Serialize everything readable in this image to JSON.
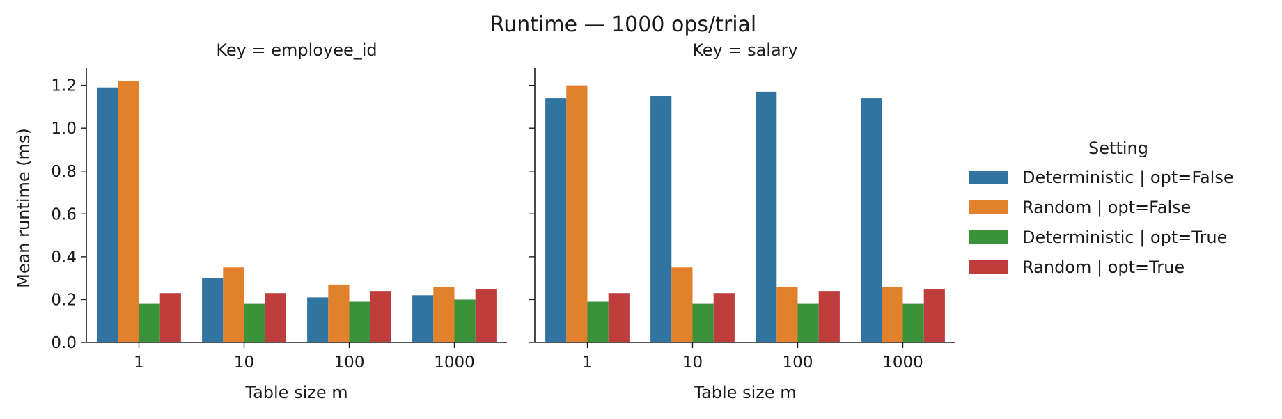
{
  "figure_title": "Runtime — 1000 ops/trial",
  "ylabel": "Mean runtime (ms)",
  "xlabel": "Table size m",
  "legend": {
    "title": "Setting",
    "entries": [
      {
        "label": "Deterministic | opt=False",
        "color": "#3274a1"
      },
      {
        "label": "Random | opt=False",
        "color": "#e1812c"
      },
      {
        "label": "Deterministic | opt=True",
        "color": "#3a923a"
      },
      {
        "label": "Random | opt=True",
        "color": "#c03d3e"
      }
    ]
  },
  "chart_data": [
    {
      "type": "bar",
      "title": "Key = employee_id",
      "xlabel": "Table size m",
      "ylabel": "Mean runtime (ms)",
      "categories": [
        "1",
        "10",
        "100",
        "1000"
      ],
      "ylim": [
        0,
        1.28
      ],
      "yticks": [
        "0.0",
        "0.2",
        "0.4",
        "0.6",
        "0.8",
        "1.0",
        "1.2"
      ],
      "series": [
        {
          "name": "Deterministic | opt=False",
          "values": [
            1.19,
            0.3,
            0.21,
            0.22
          ]
        },
        {
          "name": "Random | opt=False",
          "values": [
            1.22,
            0.35,
            0.27,
            0.26
          ]
        },
        {
          "name": "Deterministic | opt=True",
          "values": [
            0.18,
            0.18,
            0.19,
            0.2
          ]
        },
        {
          "name": "Random | opt=True",
          "values": [
            0.23,
            0.23,
            0.24,
            0.25
          ]
        }
      ]
    },
    {
      "type": "bar",
      "title": "Key = salary",
      "xlabel": "Table size m",
      "ylabel": "",
      "categories": [
        "1",
        "10",
        "100",
        "1000"
      ],
      "ylim": [
        0,
        1.28
      ],
      "series": [
        {
          "name": "Deterministic | opt=False",
          "values": [
            1.14,
            1.15,
            1.17,
            1.14
          ]
        },
        {
          "name": "Random | opt=False",
          "values": [
            1.2,
            0.35,
            0.26,
            0.26
          ]
        },
        {
          "name": "Deterministic | opt=True",
          "values": [
            0.19,
            0.18,
            0.18,
            0.18
          ]
        },
        {
          "name": "Random | opt=True",
          "values": [
            0.23,
            0.23,
            0.24,
            0.25
          ]
        }
      ]
    }
  ]
}
